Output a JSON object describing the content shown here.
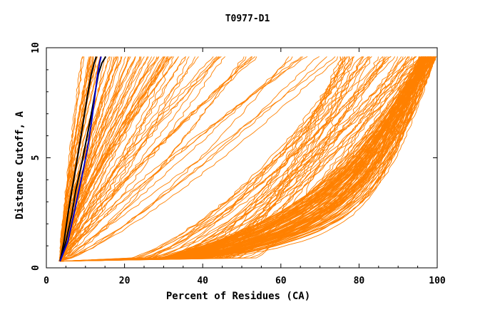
{
  "chart_data": {
    "type": "line",
    "title": "T0977-D1",
    "xlabel": "Percent of Residues (CA)",
    "ylabel": "Distance Cutoff, A",
    "xlim": [
      0,
      100
    ],
    "ylim": [
      0,
      10
    ],
    "xticks": [
      0,
      20,
      40,
      60,
      80,
      100
    ],
    "yticks": [
      0,
      5,
      10
    ],
    "grid": false,
    "legend": "none",
    "colors": {
      "models": "#ff8000",
      "highlight_black": "#000000",
      "highlight_blue": "#0000cc"
    },
    "highlighted_series": [
      {
        "color": "black",
        "x": [
          3.5,
          4.5,
          5.5,
          6.5,
          7.5,
          8.5,
          9.5,
          10.5,
          11.5,
          12.2,
          12.8
        ],
        "y": [
          0.3,
          1.2,
          2.4,
          3.5,
          4.5,
          5.6,
          6.7,
          7.8,
          8.8,
          9.3,
          9.6
        ]
      },
      {
        "color": "black",
        "x": [
          3.5,
          5.0,
          6.5,
          7.5,
          8.8,
          10.0,
          11.2,
          12.3,
          13.3,
          14.2,
          15.2
        ],
        "y": [
          0.3,
          1.2,
          2.4,
          3.5,
          4.5,
          5.6,
          6.7,
          7.8,
          8.8,
          9.3,
          9.6
        ]
      },
      {
        "color": "blue",
        "x": [
          3.5,
          5.5,
          7.0,
          8.3,
          9.5,
          10.7,
          11.6,
          12.4,
          13.1,
          13.6,
          14.0
        ],
        "y": [
          0.3,
          1.2,
          2.4,
          3.5,
          4.5,
          5.6,
          6.7,
          7.8,
          8.8,
          9.3,
          9.6
        ]
      }
    ],
    "model_series_summary": "Approximately 240 orange GDT curves; one point per (percent, cutoff) pair, cutoffs 0.3 to 9.6 A",
    "model_groups": [
      {
        "count": 18,
        "percent_at_max_cutoff": [
          9,
          14
        ],
        "shape": "steep"
      },
      {
        "count": 40,
        "percent_at_max_cutoff": [
          14,
          35
        ],
        "shape": "steep"
      },
      {
        "count": 30,
        "percent_at_max_cutoff": [
          30,
          75
        ],
        "shape": "moderate"
      },
      {
        "count": 45,
        "percent_at_max_cutoff": [
          75,
          100
        ],
        "shape": "concave"
      },
      {
        "count": 110,
        "percent_at_max_cutoff": [
          96,
          100
        ],
        "shape": "saturating"
      }
    ]
  }
}
